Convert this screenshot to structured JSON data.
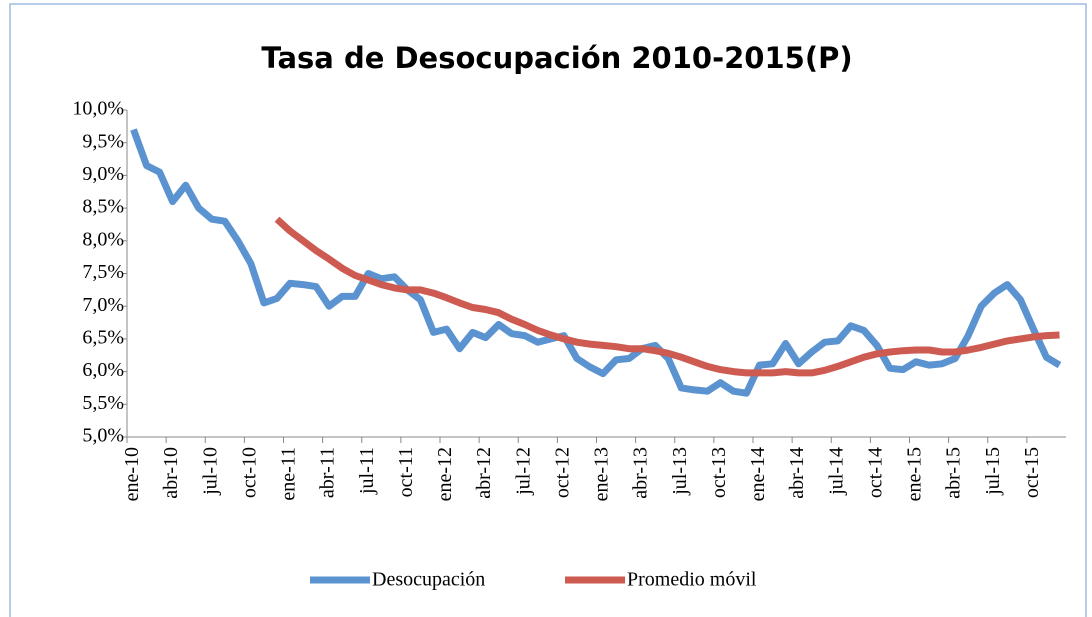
{
  "chart_data": {
    "type": "line",
    "title": "Tasa de Desocupación 2010-2015(P)",
    "categories": [
      "ene-10",
      null,
      null,
      "abr-10",
      null,
      null,
      "jul-10",
      null,
      null,
      "oct-10",
      null,
      null,
      "ene-11",
      null,
      null,
      "abr-11",
      null,
      null,
      "jul-11",
      null,
      null,
      "oct-11",
      null,
      null,
      "ene-12",
      null,
      null,
      "abr-12",
      null,
      null,
      "jul-12",
      null,
      null,
      "oct-12",
      null,
      null,
      "ene-13",
      null,
      null,
      "abr-13",
      null,
      null,
      "jul-13",
      null,
      null,
      "oct-13",
      null,
      null,
      "ene-14",
      null,
      null,
      "abr-14",
      null,
      null,
      "jul-14",
      null,
      null,
      "oct-14",
      null,
      null,
      "ene-15",
      null,
      null,
      "abr-15",
      null,
      null,
      "jul-15",
      null,
      null,
      "oct-15",
      null,
      null
    ],
    "series": [
      {
        "name": "Desocupación",
        "color": "#5b93d0",
        "values": [
          9.7,
          9.15,
          9.05,
          8.6,
          8.85,
          8.5,
          8.33,
          8.3,
          8.0,
          7.65,
          7.05,
          7.12,
          7.35,
          7.33,
          7.3,
          7.0,
          7.15,
          7.15,
          7.5,
          7.42,
          7.45,
          7.25,
          7.1,
          6.6,
          6.65,
          6.35,
          6.6,
          6.52,
          6.72,
          6.58,
          6.55,
          6.45,
          6.5,
          6.55,
          6.2,
          6.07,
          5.97,
          6.18,
          6.2,
          6.35,
          6.4,
          6.2,
          5.75,
          5.72,
          5.7,
          5.83,
          5.7,
          5.67,
          6.1,
          6.12,
          6.43,
          6.12,
          6.3,
          6.45,
          6.47,
          6.7,
          6.63,
          6.4,
          6.05,
          6.03,
          6.15,
          6.1,
          6.12,
          6.2,
          6.55,
          7.0,
          7.2,
          7.33,
          7.1,
          6.65,
          6.22,
          6.1
        ]
      },
      {
        "name": "Promedio móvil",
        "color": "#cd5b52",
        "values": [
          null,
          null,
          null,
          null,
          null,
          null,
          null,
          null,
          null,
          null,
          null,
          8.33,
          8.15,
          8.0,
          7.85,
          7.72,
          7.58,
          7.47,
          7.4,
          7.33,
          7.28,
          7.25,
          7.25,
          7.2,
          7.13,
          7.05,
          6.98,
          6.95,
          6.9,
          6.8,
          6.72,
          6.63,
          6.56,
          6.5,
          6.45,
          6.42,
          6.4,
          6.38,
          6.35,
          6.35,
          6.32,
          6.28,
          6.22,
          6.15,
          6.08,
          6.03,
          6.0,
          5.98,
          5.98,
          5.98,
          6.0,
          5.98,
          5.98,
          6.02,
          6.08,
          6.15,
          6.22,
          6.27,
          6.3,
          6.32,
          6.33,
          6.33,
          6.3,
          6.3,
          6.33,
          6.37,
          6.42,
          6.47,
          6.5,
          6.53,
          6.55,
          6.56
        ]
      }
    ],
    "ylim": [
      5,
      10
    ],
    "yticks": [
      {
        "value": 5,
        "label": "5,0%"
      },
      {
        "value": 5.5,
        "label": "5,5%"
      },
      {
        "value": 6,
        "label": "6,0%"
      },
      {
        "value": 6.5,
        "label": "6,5%"
      },
      {
        "value": 7,
        "label": "7,0%"
      },
      {
        "value": 7.5,
        "label": "7,5%"
      },
      {
        "value": 8,
        "label": "8,0%"
      },
      {
        "value": 8.5,
        "label": "8,5%"
      },
      {
        "value": 9,
        "label": "9,0%"
      },
      {
        "value": 9.5,
        "label": "9,5%"
      },
      {
        "value": 10,
        "label": "10,0%"
      }
    ],
    "legend": "bottom"
  }
}
